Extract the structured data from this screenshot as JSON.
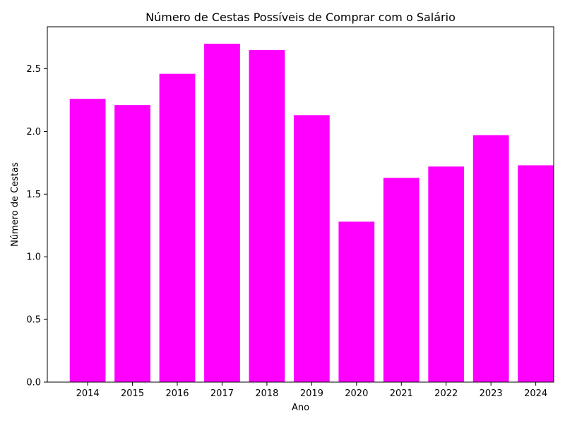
{
  "chart_data": {
    "type": "bar",
    "title": "Número de Cestas Possíveis de Comprar com o Salário",
    "xlabel": "Ano",
    "ylabel": "Número de Cestas",
    "categories": [
      "2014",
      "2015",
      "2016",
      "2017",
      "2018",
      "2019",
      "2020",
      "2021",
      "2022",
      "2023",
      "2024"
    ],
    "values": [
      2.26,
      2.21,
      2.46,
      2.7,
      2.65,
      2.13,
      1.28,
      1.63,
      1.72,
      1.97,
      1.73
    ],
    "ylim": [
      0,
      2.835
    ],
    "yticks": [
      "0.0",
      "0.5",
      "1.0",
      "1.5",
      "2.0",
      "2.5"
    ],
    "grid": false,
    "bar_color": "#ff00ff"
  }
}
